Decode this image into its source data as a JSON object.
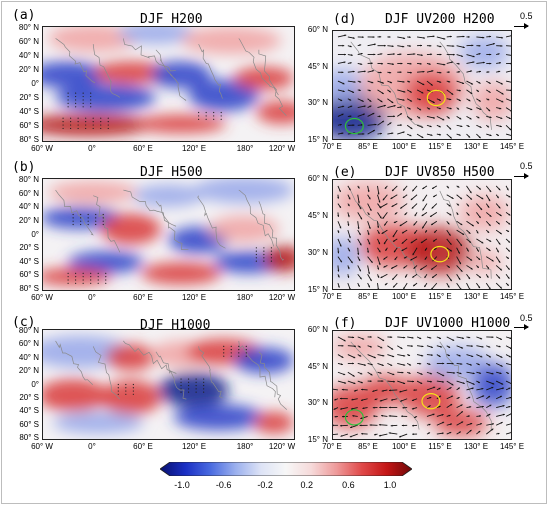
{
  "panels": {
    "a": {
      "letter": "(a)",
      "title": "DJF  H200"
    },
    "b": {
      "letter": "(b)",
      "title": "DJF  H500"
    },
    "c": {
      "letter": "(c)",
      "title": "DJF  H1000"
    },
    "d": {
      "letter": "(d)",
      "title": "DJF  UV200  H200",
      "ref": "0.5"
    },
    "e": {
      "letter": "(e)",
      "title": "DJF  UV850  H500",
      "ref": "0.5"
    },
    "f": {
      "letter": "(f)",
      "title": "DJF  UV1000  H1000",
      "ref": "0.5"
    }
  },
  "global_axes": {
    "lat": [
      "80° N",
      "60° N",
      "40° N",
      "20° N",
      "0°",
      "20° S",
      "40° S",
      "60° S",
      "80° S"
    ],
    "lon": [
      "60° W",
      "0°",
      "60° E",
      "120° E",
      "180°",
      "120° W"
    ]
  },
  "regional_axes": {
    "lat": [
      "60° N",
      "45° N",
      "30° N",
      "15° N"
    ],
    "lon": [
      "70° E",
      "85° E",
      "100° E",
      "115° E",
      "130° E",
      "145° E"
    ]
  },
  "colorbar": {
    "labels": [
      "-1.0",
      "-0.6",
      "-0.2",
      "0.2",
      "0.6",
      "1.0"
    ],
    "colors": [
      "#08106e",
      "#1a2fc4",
      "#4a6be0",
      "#9bb0ee",
      "#dde3f6",
      "#f7f7f7",
      "#f6dada",
      "#ee9a9a",
      "#e04a4a",
      "#c41616",
      "#6e0808"
    ]
  }
}
